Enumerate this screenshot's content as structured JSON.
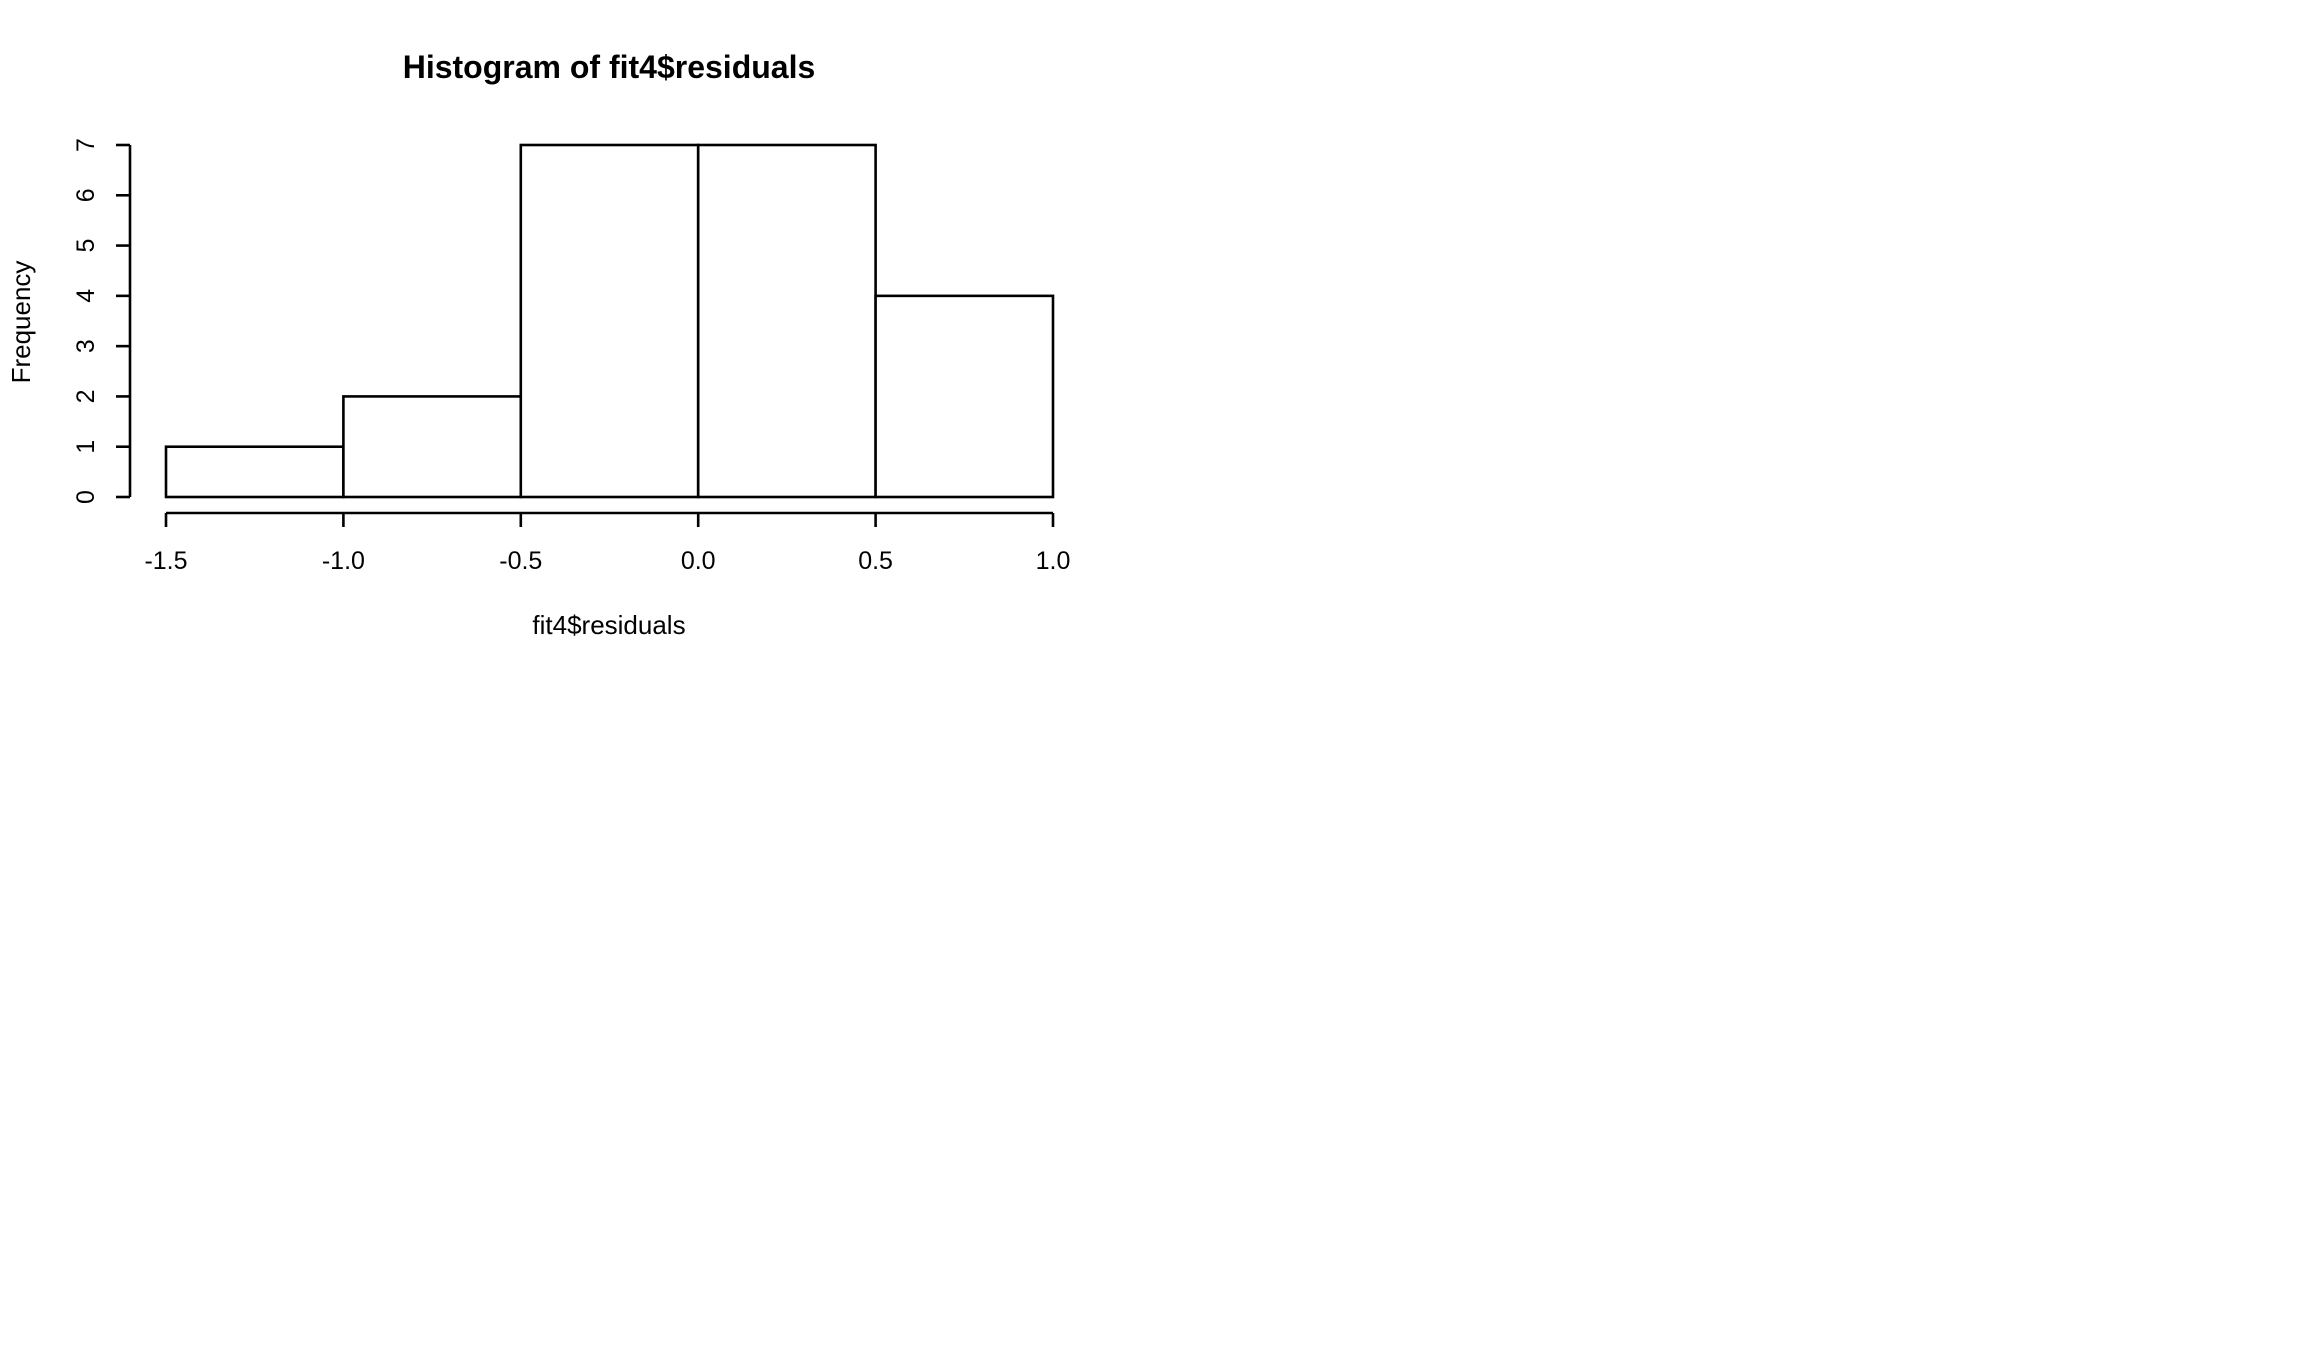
{
  "chart_data": {
    "type": "bar",
    "subtype": "histogram",
    "title": "Histogram of fit4$residuals",
    "xlabel": "fit4$residuals",
    "ylabel": "Frequency",
    "bins": [
      {
        "x0": -1.5,
        "x1": -1.0,
        "count": 1
      },
      {
        "x0": -1.0,
        "x1": -0.5,
        "count": 2
      },
      {
        "x0": -0.5,
        "x1": 0.0,
        "count": 7
      },
      {
        "x0": 0.0,
        "x1": 0.5,
        "count": 7
      },
      {
        "x0": 0.5,
        "x1": 1.0,
        "count": 4
      }
    ],
    "xlim": [
      -1.5,
      1.0
    ],
    "ylim": [
      0,
      7
    ],
    "x_ticks": [
      -1.5,
      -1.0,
      -0.5,
      0.0,
      0.5,
      1.0
    ],
    "x_tick_labels": [
      "-1.5",
      "-1.0",
      "-0.5",
      "0.0",
      "0.5",
      "1.0"
    ],
    "y_ticks": [
      0,
      1,
      2,
      3,
      4,
      5,
      6,
      7
    ],
    "y_tick_labels": [
      "0",
      "1",
      "2",
      "3",
      "4",
      "5",
      "6",
      "7"
    ],
    "grid": false,
    "legend": "none",
    "colors": {
      "bar_fill": "#ffffff",
      "bar_stroke": "#000000",
      "background": "#ffffff"
    }
  }
}
